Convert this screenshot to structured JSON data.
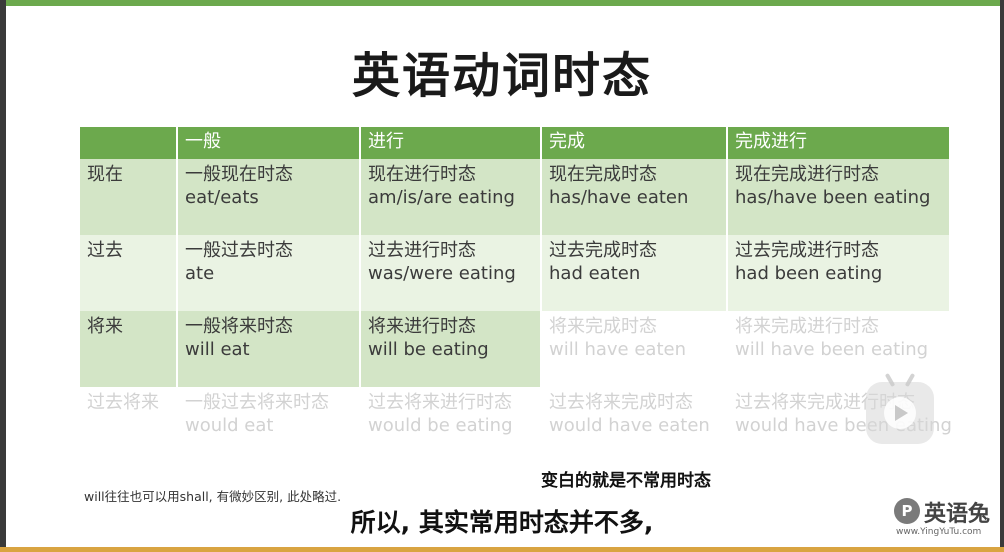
{
  "slide": {
    "title": "英语动词时态",
    "headers": [
      "",
      "一般",
      "进行",
      "完成",
      "完成进行"
    ],
    "rows": [
      {
        "label": "现在",
        "cells": [
          {
            "name": "一般现在时态",
            "form": "eat/eats"
          },
          {
            "name": "现在进行时态",
            "form": "am/is/are eating"
          },
          {
            "name": "现在完成时态",
            "form": "has/have eaten"
          },
          {
            "name": "现在完成进行时态",
            "form": "has/have been eating"
          }
        ]
      },
      {
        "label": "过去",
        "cells": [
          {
            "name": "一般过去时态",
            "form": "ate"
          },
          {
            "name": "过去进行时态",
            "form": "was/were eating"
          },
          {
            "name": "过去完成时态",
            "form": "had eaten"
          },
          {
            "name": "过去完成进行时态",
            "form": "had been eating"
          }
        ]
      },
      {
        "label": "将来",
        "cells": [
          {
            "name": "一般将来时态",
            "form": "will eat"
          },
          {
            "name": "将来进行时态",
            "form": "will be eating"
          },
          {
            "name": "将来完成时态",
            "form": "will have eaten"
          },
          {
            "name": "将来完成进行时态",
            "form": "will have been eating"
          }
        ]
      },
      {
        "label": "过去将来",
        "cells": [
          {
            "name": "一般过去将来时态",
            "form": "would eat"
          },
          {
            "name": "过去将来进行时态",
            "form": "would be eating"
          },
          {
            "name": "过去将来完成时态",
            "form": "would have eaten"
          },
          {
            "name": "过去将来完成进行时态",
            "form": "would have been eating"
          }
        ]
      }
    ],
    "note": "will往往也可以用shall, 有微妙区别, 此处略过.",
    "annotation": "变白的就是不常用时态"
  },
  "video": {
    "subtitle": "所以, 其实常用时态并不多,",
    "play_icon": "play-icon"
  },
  "watermark": {
    "badge": "P",
    "name": "英语兔",
    "url": "www.YingYuTu.com"
  },
  "colors": {
    "header_green": "#6ca94d",
    "row_green": "#d3e5c6",
    "row_light_green": "#eaf3e3",
    "faded_text": "#d2d2d2"
  }
}
